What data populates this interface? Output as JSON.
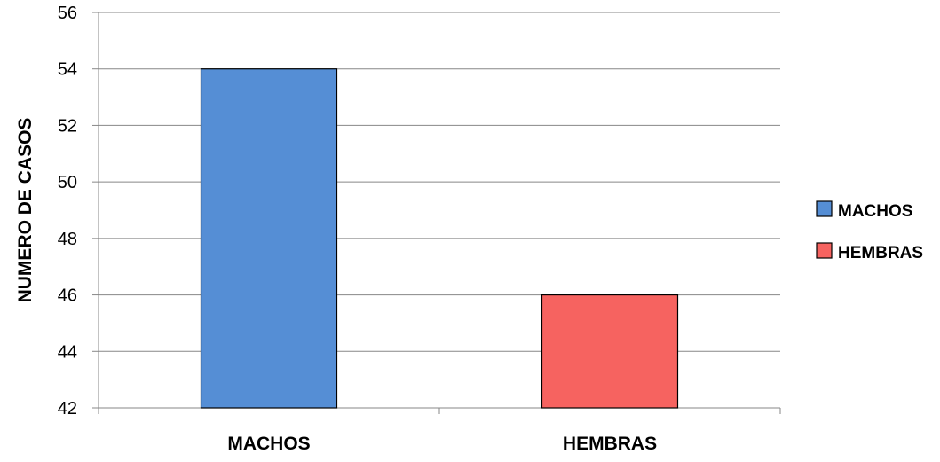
{
  "chart_data": {
    "type": "bar",
    "categories": [
      "MACHOS",
      "HEMBRAS"
    ],
    "values": [
      54,
      46
    ],
    "colors": [
      "#558ED5",
      "#F66360"
    ],
    "title": "",
    "xlabel": "",
    "ylabel": "NUMERO DE CASOS",
    "ylim": [
      42,
      56
    ],
    "yticks": [
      42,
      44,
      46,
      48,
      50,
      52,
      54,
      56
    ],
    "grid": true,
    "legend": {
      "position": "right",
      "entries": [
        "MACHOS",
        "HEMBRAS"
      ]
    }
  }
}
